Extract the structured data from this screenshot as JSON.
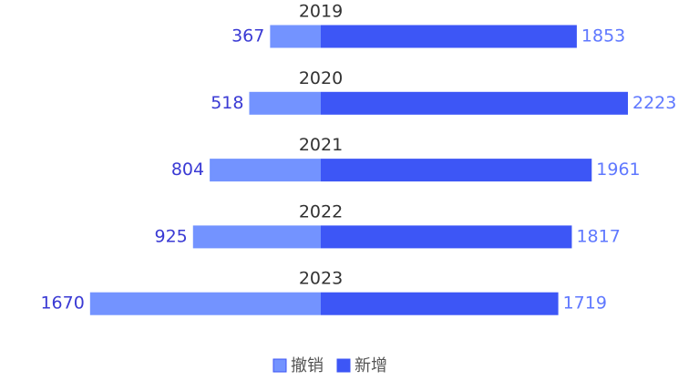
{
  "chart_data": {
    "type": "diverging-bar",
    "categories": [
      "2019",
      "2020",
      "2021",
      "2022",
      "2023"
    ],
    "series": [
      {
        "name": "撤销",
        "color": "#7393ff",
        "values": [
          367,
          518,
          804,
          925,
          1670
        ]
      },
      {
        "name": "新增",
        "color": "#3d56f6",
        "values": [
          1853,
          2223,
          1961,
          1817,
          1719
        ]
      }
    ],
    "legend": "bottom"
  }
}
